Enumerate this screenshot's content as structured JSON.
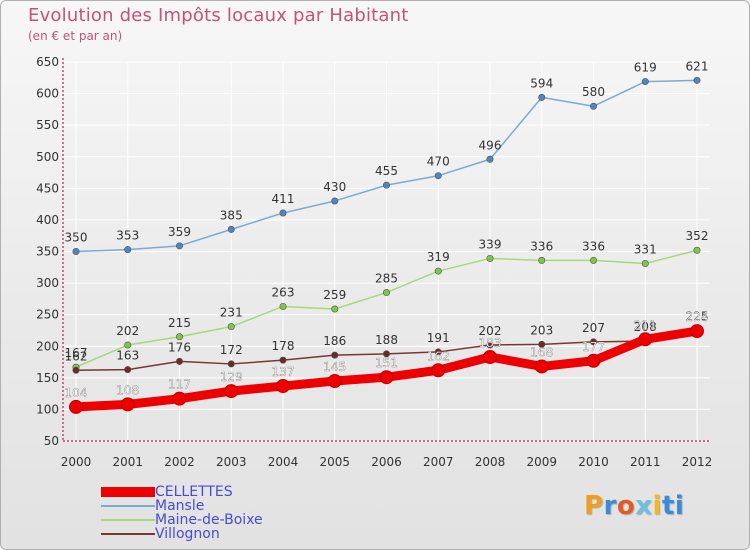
{
  "title": "Evolution des Impôts locaux par Habitant",
  "subtitle": "(en € et par an)",
  "logo_text": "Proxiti",
  "colors": {
    "title": "#c8507a",
    "axis": "#c2185b",
    "grid": "#ffffff",
    "legend_text": "#4a4ad0"
  },
  "chart_data": {
    "type": "line",
    "title": "Evolution des Impôts locaux par Habitant",
    "subtitle": "(en € et par an)",
    "x": [
      "2000",
      "2001",
      "2002",
      "2003",
      "2004",
      "2005",
      "2006",
      "2007",
      "2008",
      "2009",
      "2010",
      "2011",
      "2012"
    ],
    "ylim": [
      50,
      650
    ],
    "yticks": [
      50,
      100,
      150,
      200,
      250,
      300,
      350,
      400,
      450,
      500,
      550,
      600,
      650
    ],
    "grid": true,
    "legend_position": "bottom-left",
    "series": [
      {
        "name": "CELLETTES",
        "color": "#ee0000",
        "point_color": "#ee0000",
        "label_color": "#ffffff",
        "thick": true,
        "values": [
          104,
          108,
          117,
          129,
          137,
          145,
          151,
          162,
          183,
          168,
          177,
          211,
          224
        ],
        "labels": [
          "104",
          "108",
          "117",
          "129",
          "137",
          "145",
          "151",
          "162",
          "183",
          "168",
          "177",
          "211",
          "224"
        ]
      },
      {
        "name": "Mansle",
        "color": "#7aaad6",
        "point_color": "#4f86c0",
        "label_color": "#333333",
        "thick": false,
        "values": [
          350,
          353,
          359,
          385,
          411,
          430,
          455,
          470,
          496,
          594,
          580,
          619,
          621
        ],
        "labels": [
          "350",
          "353",
          "359",
          "385",
          "411",
          "430",
          "455",
          "470",
          "496",
          "594",
          "580",
          "619",
          "621"
        ]
      },
      {
        "name": "Maine-de-Boixe",
        "color": "#a7d87a",
        "point_color": "#7fc644",
        "label_color": "#333333",
        "thick": false,
        "values": [
          167,
          202,
          215,
          231,
          263,
          259,
          285,
          319,
          339,
          336,
          336,
          331,
          352
        ],
        "labels": [
          "167",
          "202",
          "215",
          "231",
          "263",
          "259",
          "285",
          "319",
          "339",
          "336",
          "336",
          "331",
          "352"
        ]
      },
      {
        "name": "Villognon",
        "color": "#7a3535",
        "point_color": "#6e2a2a",
        "label_color": "#333333",
        "thick": false,
        "values": [
          162,
          163,
          176,
          172,
          178,
          186,
          188,
          191,
          202,
          203,
          207,
          208,
          225
        ],
        "labels": [
          "162",
          "163",
          "176",
          "172",
          "178",
          "186",
          "188",
          "191",
          "202",
          "203",
          "207",
          "208",
          "225"
        ]
      }
    ]
  },
  "legend": {
    "items": [
      {
        "label": "CELLETTES",
        "color": "#ee0000",
        "thick": true
      },
      {
        "label": "Mansle",
        "color": "#7aaad6",
        "thick": false
      },
      {
        "label": "Maine-de-Boixe",
        "color": "#a7d87a",
        "thick": false
      },
      {
        "label": "Villognon",
        "color": "#7a3535",
        "thick": false
      }
    ]
  }
}
